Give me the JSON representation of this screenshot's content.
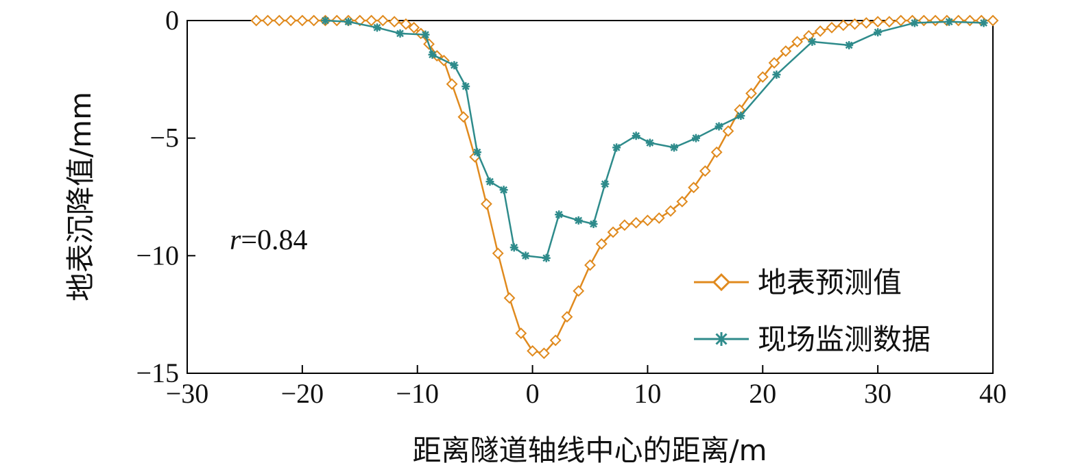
{
  "chart_data": {
    "type": "line",
    "title": "",
    "xlabel": "距离隧道轴线中心的距离/m",
    "ylabel": "地表沉降值/mm",
    "xlim": [
      -30,
      40
    ],
    "ylim": [
      -15,
      0
    ],
    "xticks": [
      -30,
      -20,
      -10,
      0,
      10,
      20,
      30,
      40
    ],
    "yticks": [
      0,
      -5,
      -10,
      -15
    ],
    "xtick_labels": [
      "−30",
      "−20",
      "−10",
      "0",
      "10",
      "20",
      "30",
      "40"
    ],
    "ytick_labels": [
      "0",
      "−5",
      "−10",
      "−15"
    ],
    "grid": false,
    "legend_position": "bottom-right",
    "annotation": {
      "italic": "r",
      "text": "=0.84"
    },
    "series": [
      {
        "name": "地表预测值",
        "color": "#E08A1E",
        "marker": "diamond",
        "x": [
          -24,
          -23,
          -22,
          -21,
          -20,
          -19,
          -18,
          -17,
          -16,
          -15,
          -14,
          -13,
          -12,
          -11,
          -10.3,
          -9.7,
          -9,
          -8.3,
          -7.7,
          -7,
          -6,
          -5,
          -4,
          -3,
          -2,
          -1,
          0,
          1,
          2,
          3,
          4,
          5,
          6,
          7,
          8,
          9,
          10,
          11,
          12,
          13,
          14,
          15,
          16,
          17,
          18,
          19,
          20,
          21,
          22,
          23,
          24,
          25,
          26,
          27,
          28,
          29,
          30,
          31,
          32,
          33,
          34,
          35,
          36,
          37,
          38,
          39,
          40
        ],
        "y": [
          0,
          0,
          0,
          0,
          0,
          0,
          0,
          0,
          0,
          0,
          0,
          0,
          -0.05,
          -0.15,
          -0.3,
          -0.55,
          -1.0,
          -1.5,
          -1.7,
          -2.7,
          -4.1,
          -5.8,
          -7.8,
          -9.9,
          -11.8,
          -13.3,
          -14.05,
          -14.15,
          -13.6,
          -12.6,
          -11.5,
          -10.4,
          -9.5,
          -9.0,
          -8.7,
          -8.6,
          -8.5,
          -8.4,
          -8.1,
          -7.7,
          -7.1,
          -6.4,
          -5.6,
          -4.7,
          -3.8,
          -3.1,
          -2.4,
          -1.8,
          -1.3,
          -0.9,
          -0.65,
          -0.45,
          -0.3,
          -0.2,
          -0.15,
          -0.1,
          -0.05,
          -0.05,
          0,
          0,
          0,
          0,
          0,
          0,
          0,
          0,
          0
        ]
      },
      {
        "name": "现场监测数据",
        "color": "#2E8B8B",
        "marker": "asterisk",
        "x": [
          -18,
          -16,
          -13.5,
          -11.5,
          -9.3,
          -8.7,
          -6.8,
          -5.8,
          -4.8,
          -3.7,
          -2.5,
          -1.6,
          -0.6,
          1.2,
          2.3,
          4,
          5.3,
          6.3,
          7.3,
          9,
          10.2,
          12.3,
          14.2,
          16.2,
          18.1,
          21.2,
          24.3,
          27.5,
          30,
          33.2,
          36.2,
          39.2
        ],
        "y": [
          0,
          -0.05,
          -0.3,
          -0.55,
          -0.6,
          -1.45,
          -1.9,
          -2.8,
          -5.6,
          -6.85,
          -7.2,
          -9.65,
          -10,
          -10.1,
          -8.25,
          -8.5,
          -8.65,
          -6.95,
          -5.4,
          -4.9,
          -5.2,
          -5.4,
          -5.0,
          -4.5,
          -4.05,
          -2.3,
          -0.9,
          -1.05,
          -0.5,
          -0.1,
          -0.05,
          -0.1
        ]
      }
    ]
  }
}
